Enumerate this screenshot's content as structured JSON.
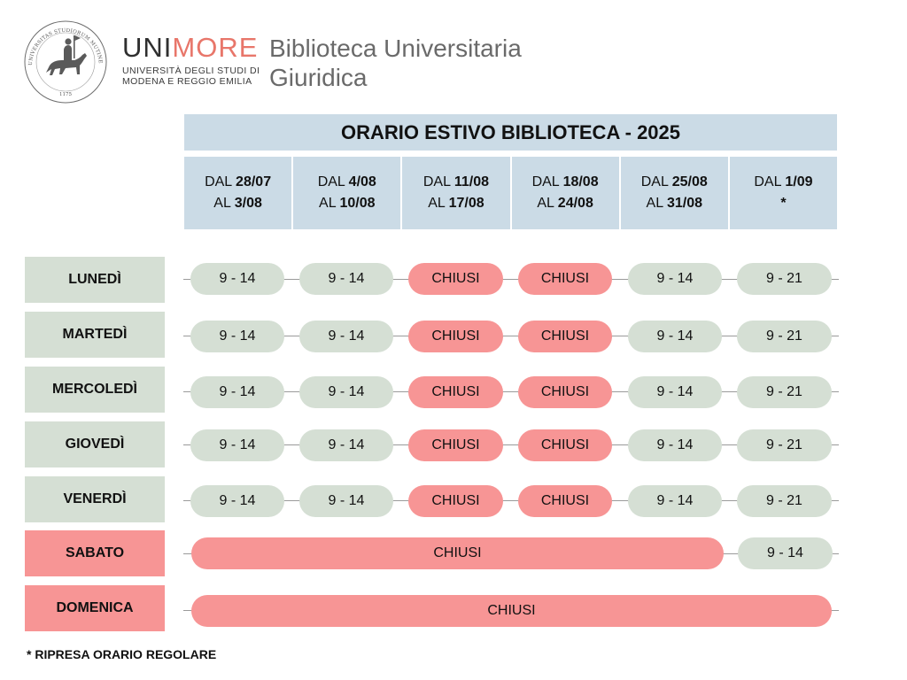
{
  "header": {
    "brand_uni": "UNI",
    "brand_more": "MORE",
    "brand_sub_line1": "UNIVERSITÀ DEGLI STUDI DI",
    "brand_sub_line2": "MODENA E REGGIO EMILIA",
    "library_line1": "Biblioteca Universitaria",
    "library_line2": "Giuridica",
    "seal_text": "UNIVERSITAS STUDIORUM MUTINENSIS ET REGIENSIS",
    "seal_year": "1175"
  },
  "schedule": {
    "title": "ORARIO ESTIVO BIBLIOTECA - 2025",
    "weeks": [
      {
        "from_label": "DAL",
        "from": "28/07",
        "to_label": "AL",
        "to": "3/08"
      },
      {
        "from_label": "DAL",
        "from": "4/08",
        "to_label": "AL",
        "to": "10/08"
      },
      {
        "from_label": "DAL",
        "from": "11/08",
        "to_label": "AL",
        "to": "17/08"
      },
      {
        "from_label": "DAL",
        "from": "18/08",
        "to_label": "AL",
        "to": "24/08"
      },
      {
        "from_label": "DAL",
        "from": "25/08",
        "to_label": "AL",
        "to": "31/08"
      },
      {
        "from_label": "DAL",
        "from": "1/09",
        "to_label": "",
        "to": "*"
      }
    ],
    "days": [
      {
        "name": "LUNEDÌ",
        "status": "open",
        "cells": [
          "9 - 14",
          "9 - 14",
          "CHIUSI",
          "CHIUSI",
          "9 - 14",
          "9 - 21"
        ]
      },
      {
        "name": "MARTEDÌ",
        "status": "open",
        "cells": [
          "9 - 14",
          "9 - 14",
          "CHIUSI",
          "CHIUSI",
          "9 - 14",
          "9 - 21"
        ]
      },
      {
        "name": "MERCOLEDÌ",
        "status": "open",
        "cells": [
          "9 - 14",
          "9 - 14",
          "CHIUSI",
          "CHIUSI",
          "9 - 14",
          "9 - 21"
        ]
      },
      {
        "name": "GIOVEDÌ",
        "status": "open",
        "cells": [
          "9 - 14",
          "9 - 14",
          "CHIUSI",
          "CHIUSI",
          "9 - 14",
          "9 - 21"
        ]
      },
      {
        "name": "VENERDÌ",
        "status": "open",
        "cells": [
          "9 - 14",
          "9 - 14",
          "CHIUSI",
          "CHIUSI",
          "9 - 14",
          "9 - 21"
        ]
      },
      {
        "name": "SABATO",
        "status": "closed",
        "span_closed": "CHIUSI",
        "last": "9 - 14"
      },
      {
        "name": "DOMENICA",
        "status": "closed",
        "span_closed": "CHIUSI"
      }
    ],
    "footnote": "* RIPRESA ORARIO REGOLARE"
  },
  "colors": {
    "header_blue": "#cbdbe6",
    "open_green": "#d5dfd4",
    "closed_red": "#f79595",
    "brand_accent": "#e8766a"
  }
}
